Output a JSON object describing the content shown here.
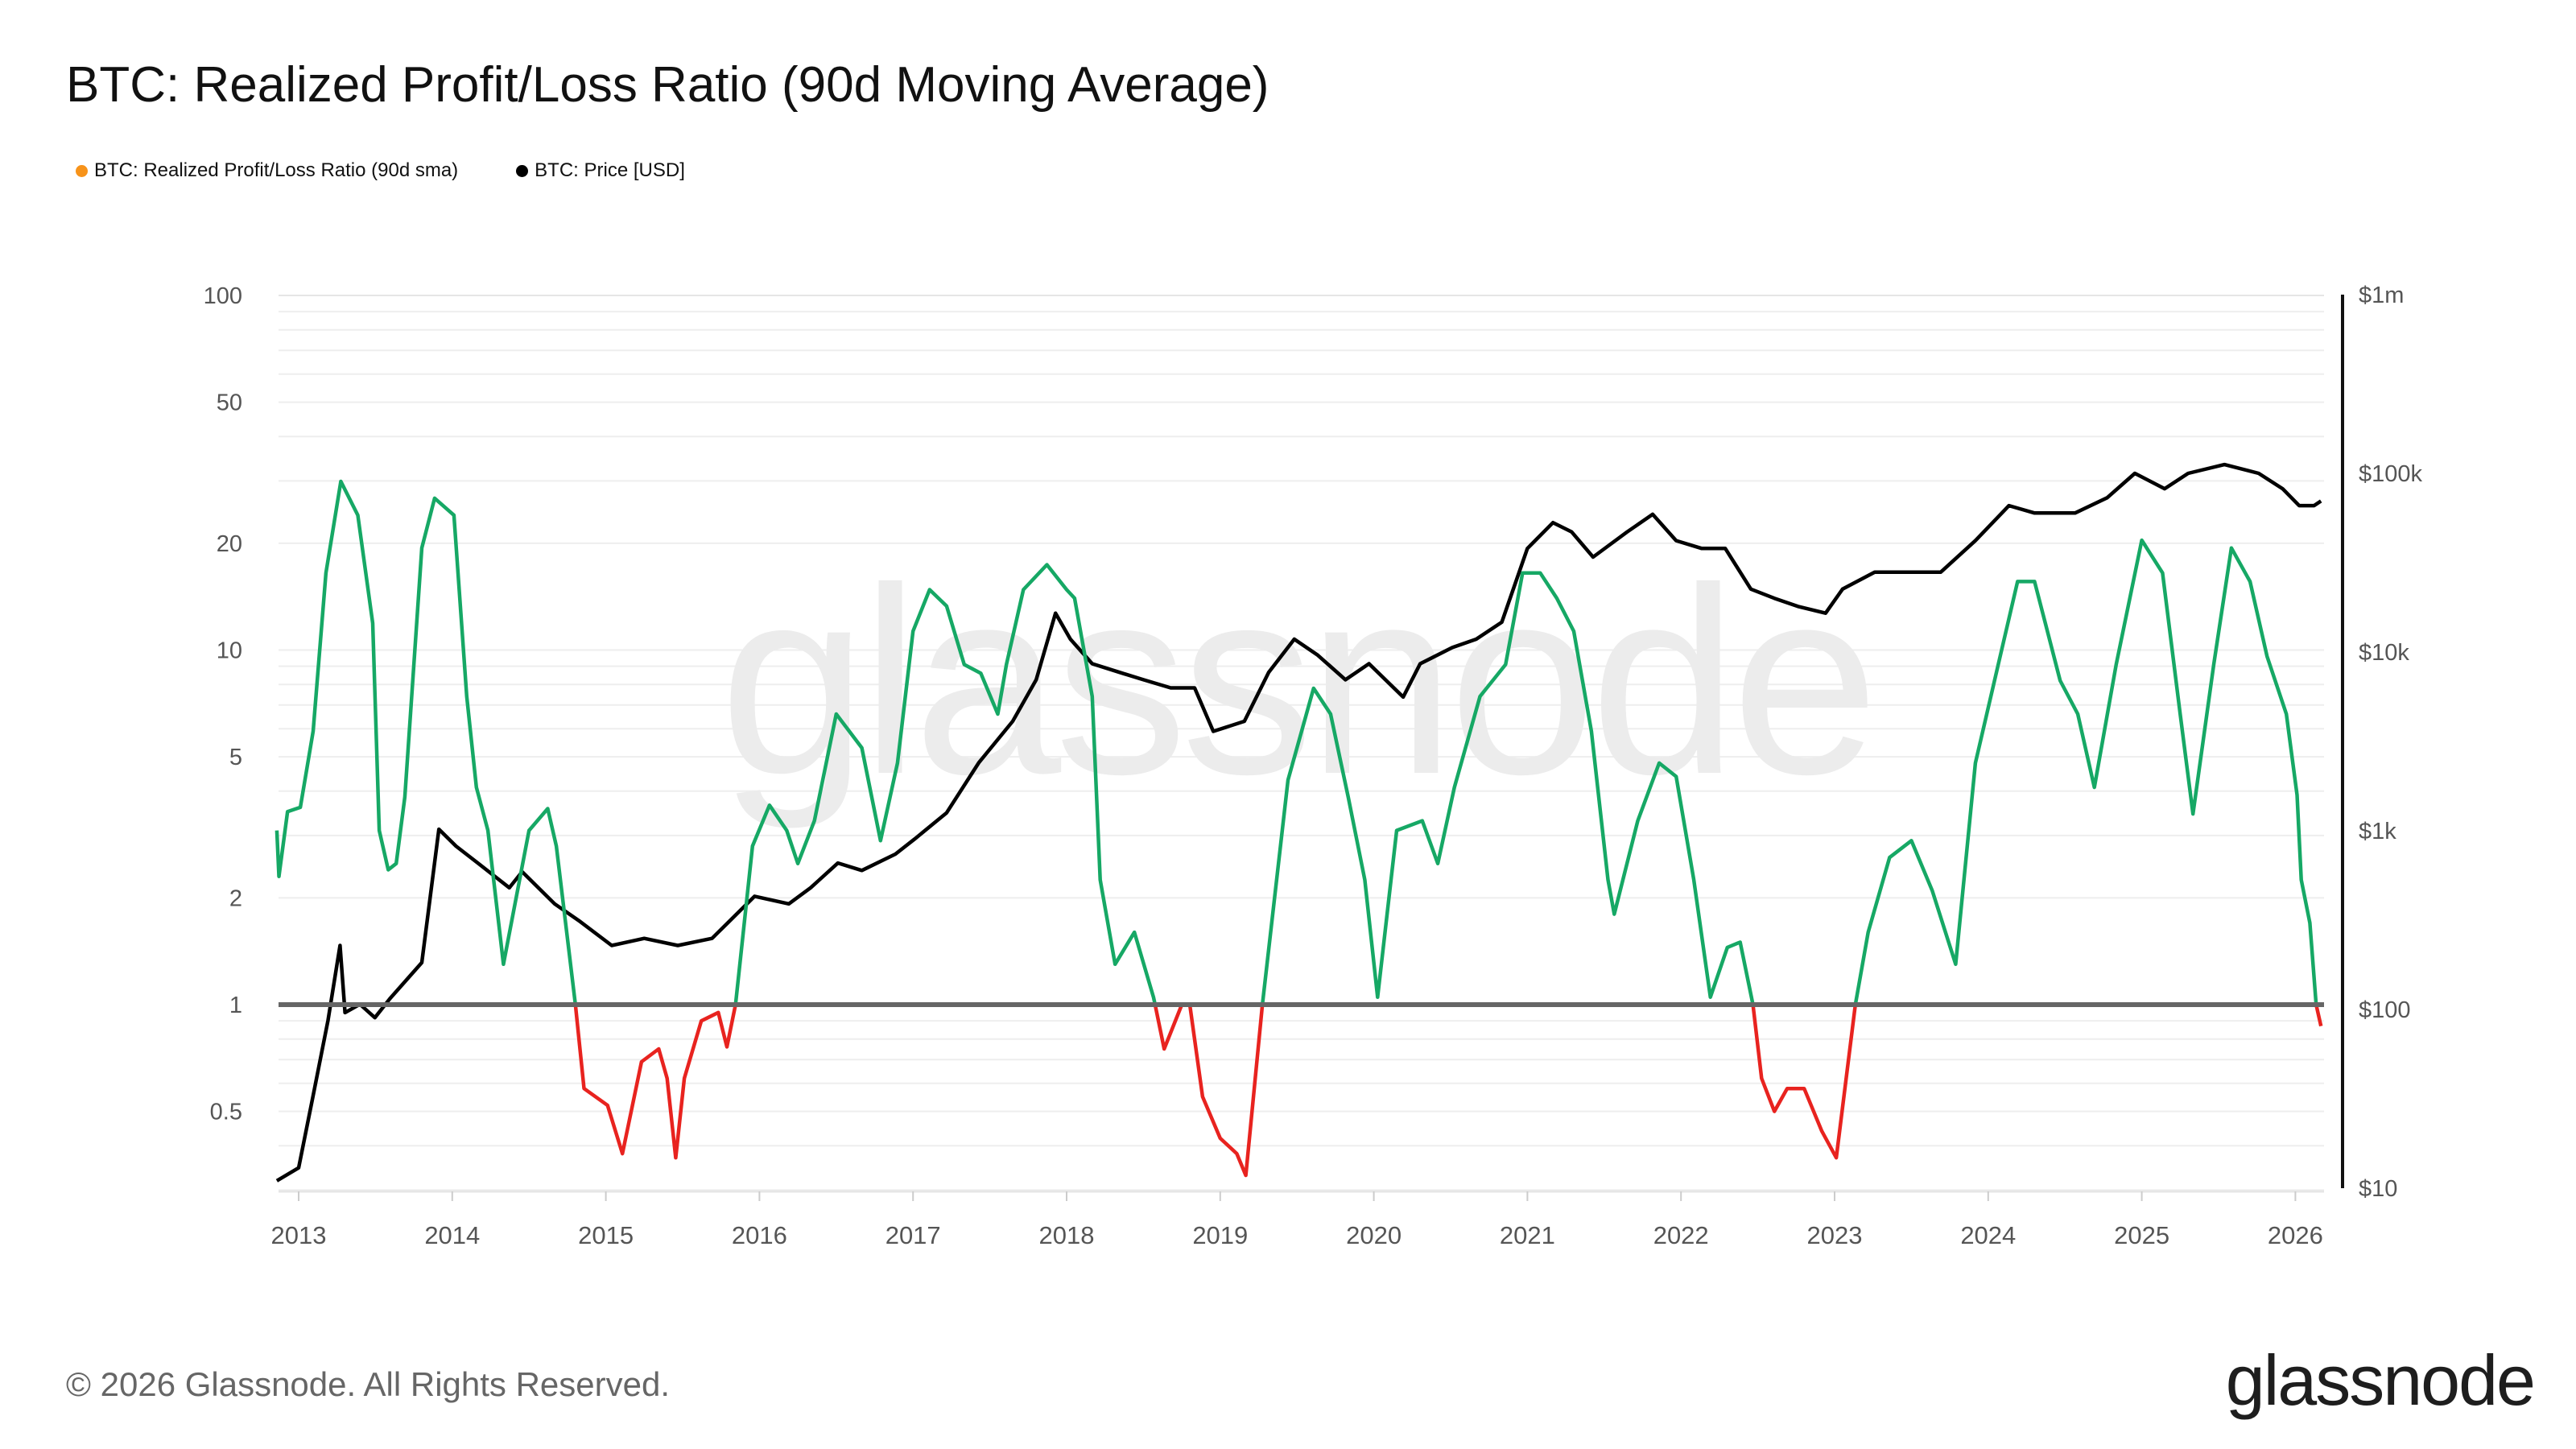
{
  "title": "BTC: Realized Profit/Loss Ratio (90d Moving Average)",
  "legend": [
    {
      "label": "BTC: Realized Profit/Loss Ratio (90d sma)",
      "color": "#f7931a"
    },
    {
      "label": "BTC: Price [USD]",
      "color": "#000000"
    }
  ],
  "footer": "© 2026 Glassnode. All Rights Reserved.",
  "logo": "glassnode",
  "watermark": "glassnode",
  "chart_data": {
    "type": "line",
    "x_ticks": [
      "2013",
      "2014",
      "2015",
      "2016",
      "2017",
      "2018",
      "2019",
      "2020",
      "2021",
      "2022",
      "2023",
      "2024",
      "2025",
      "2026"
    ],
    "y_left": {
      "scale": "log",
      "range": [
        0.3,
        100
      ],
      "ticks": [
        100,
        50,
        20,
        10,
        5,
        2,
        1,
        0.5
      ],
      "tick_labels": [
        "100",
        "50",
        "20",
        "10",
        "5",
        "2",
        "1",
        "0.5"
      ]
    },
    "y_right": {
      "scale": "log",
      "range": [
        10,
        1000000
      ],
      "ticks": [
        1000000,
        100000,
        10000,
        1000,
        100,
        10
      ],
      "tick_labels": [
        "$1m",
        "$100k",
        "$10k",
        "$1k",
        "$100",
        "$10"
      ]
    },
    "reference_line": {
      "value": 1,
      "color": "#666666"
    },
    "grid": true,
    "colors": {
      "above_1": "#16a865",
      "below_1": "#e8231f",
      "price": "#000000"
    },
    "series": [
      {
        "name": "BTC: Realized Profit/Loss Ratio (90d sma)",
        "axis": "left",
        "points": [
          [
            "2012-11-10",
            3.1
          ],
          [
            "2012-11-15",
            2.3
          ],
          [
            "2012-12-05",
            3.5
          ],
          [
            "2013-01-05",
            3.6
          ],
          [
            "2013-02-05",
            5.9
          ],
          [
            "2013-03-05",
            16.5
          ],
          [
            "2013-04-10",
            29.9
          ],
          [
            "2013-05-20",
            24
          ],
          [
            "2013-06-25",
            11.9
          ],
          [
            "2013-07-10",
            3.1
          ],
          [
            "2013-08-01",
            2.4
          ],
          [
            "2013-08-20",
            2.5
          ],
          [
            "2013-09-10",
            3.85
          ],
          [
            "2013-10-20",
            19.4
          ],
          [
            "2013-11-20",
            26.8
          ],
          [
            "2014-01-05",
            24
          ],
          [
            "2014-02-05",
            7.4
          ],
          [
            "2014-02-28",
            4.1
          ],
          [
            "2014-03-25",
            3.1
          ],
          [
            "2014-05-01",
            1.3
          ],
          [
            "2014-07-01",
            3.1
          ],
          [
            "2014-08-15",
            3.57
          ],
          [
            "2014-09-05",
            2.8
          ],
          [
            "2014-10-20",
            1.0
          ],
          [
            "2014-11-10",
            0.58
          ],
          [
            "2015-01-05",
            0.52
          ],
          [
            "2015-02-10",
            0.38
          ],
          [
            "2015-03-25",
            0.69
          ],
          [
            "2015-05-05",
            0.75
          ],
          [
            "2015-05-25",
            0.62
          ],
          [
            "2015-06-15",
            0.37
          ],
          [
            "2015-07-05",
            0.62
          ],
          [
            "2015-08-15",
            0.9
          ],
          [
            "2015-09-25",
            0.95
          ],
          [
            "2015-10-15",
            0.76
          ],
          [
            "2015-11-05",
            1.0
          ],
          [
            "2015-12-15",
            2.8
          ],
          [
            "2016-01-25",
            3.65
          ],
          [
            "2016-03-05",
            3.1
          ],
          [
            "2016-04-01",
            2.5
          ],
          [
            "2016-05-10",
            3.3
          ],
          [
            "2016-07-01",
            6.6
          ],
          [
            "2016-09-01",
            5.3
          ],
          [
            "2016-10-15",
            2.9
          ],
          [
            "2016-11-25",
            4.8
          ],
          [
            "2017-01-01",
            11.3
          ],
          [
            "2017-02-10",
            14.8
          ],
          [
            "2017-03-20",
            13.3
          ],
          [
            "2017-05-01",
            9.1
          ],
          [
            "2017-06-10",
            8.6
          ],
          [
            "2017-07-20",
            6.6
          ],
          [
            "2017-08-10",
            9.1
          ],
          [
            "2017-09-20",
            14.8
          ],
          [
            "2017-11-15",
            17.4
          ],
          [
            "2018-01-01",
            14.8
          ],
          [
            "2018-01-20",
            14.0
          ],
          [
            "2018-03-01",
            7.4
          ],
          [
            "2018-03-20",
            2.25
          ],
          [
            "2018-04-25",
            1.3
          ],
          [
            "2018-06-10",
            1.6
          ],
          [
            "2018-07-25",
            1.05
          ],
          [
            "2018-08-20",
            0.75
          ],
          [
            "2018-10-01",
            1.0
          ],
          [
            "2018-10-20",
            1.0
          ],
          [
            "2018-11-20",
            0.55
          ],
          [
            "2019-01-01",
            0.42
          ],
          [
            "2019-02-10",
            0.38
          ],
          [
            "2019-03-01",
            0.33
          ],
          [
            "2019-04-10",
            1.0
          ],
          [
            "2019-06-10",
            4.3
          ],
          [
            "2019-08-10",
            7.8
          ],
          [
            "2019-09-20",
            6.6
          ],
          [
            "2019-11-01",
            3.85
          ],
          [
            "2019-12-10",
            2.25
          ],
          [
            "2020-01-10",
            1.05
          ],
          [
            "2020-02-25",
            3.1
          ],
          [
            "2020-04-25",
            3.3
          ],
          [
            "2020-06-01",
            2.5
          ],
          [
            "2020-07-10",
            4.1
          ],
          [
            "2020-09-10",
            7.4
          ],
          [
            "2020-11-10",
            9.1
          ],
          [
            "2020-12-20",
            16.5
          ],
          [
            "2021-02-01",
            16.5
          ],
          [
            "2021-03-10",
            14.0
          ],
          [
            "2021-04-20",
            11.3
          ],
          [
            "2021-06-01",
            5.9
          ],
          [
            "2021-07-10",
            2.25
          ],
          [
            "2021-07-25",
            1.8
          ],
          [
            "2021-09-20",
            3.3
          ],
          [
            "2021-11-10",
            4.8
          ],
          [
            "2021-12-20",
            4.4
          ],
          [
            "2022-02-01",
            2.25
          ],
          [
            "2022-03-10",
            1.05
          ],
          [
            "2022-04-20",
            1.45
          ],
          [
            "2022-05-20",
            1.5
          ],
          [
            "2022-06-20",
            1.0
          ],
          [
            "2022-07-10",
            0.62
          ],
          [
            "2022-08-10",
            0.5
          ],
          [
            "2022-09-10",
            0.58
          ],
          [
            "2022-10-20",
            0.58
          ],
          [
            "2022-12-01",
            0.44
          ],
          [
            "2023-01-05",
            0.37
          ],
          [
            "2023-02-20",
            1.0
          ],
          [
            "2023-03-20",
            1.6
          ],
          [
            "2023-05-10",
            2.6
          ],
          [
            "2023-07-01",
            2.9
          ],
          [
            "2023-08-20",
            2.1
          ],
          [
            "2023-10-15",
            1.3
          ],
          [
            "2023-12-01",
            4.8
          ],
          [
            "2024-01-25",
            9.1
          ],
          [
            "2024-03-10",
            15.6
          ],
          [
            "2024-04-20",
            15.6
          ],
          [
            "2024-06-20",
            8.2
          ],
          [
            "2024-08-01",
            6.6
          ],
          [
            "2024-09-10",
            4.1
          ],
          [
            "2024-11-01",
            9.1
          ],
          [
            "2025-01-01",
            20.4
          ],
          [
            "2025-02-20",
            16.5
          ],
          [
            "2025-04-01",
            6.6
          ],
          [
            "2025-05-01",
            3.45
          ],
          [
            "2025-06-20",
            9.1
          ],
          [
            "2025-08-01",
            19.4
          ],
          [
            "2025-09-15",
            15.6
          ],
          [
            "2025-10-25",
            9.6
          ],
          [
            "2025-12-10",
            6.6
          ],
          [
            "2026-01-05",
            3.9
          ],
          [
            "2026-01-15",
            2.25
          ],
          [
            "2026-02-05",
            1.7
          ],
          [
            "2026-02-20",
            1.0
          ],
          [
            "2026-03-01",
            0.87
          ]
        ]
      },
      {
        "name": "BTC: Price [USD]",
        "axis": "right",
        "points": [
          [
            "2012-11-10",
            11
          ],
          [
            "2013-01-01",
            13
          ],
          [
            "2013-02-05",
            33
          ],
          [
            "2013-03-10",
            87
          ],
          [
            "2013-04-08",
            228
          ],
          [
            "2013-04-20",
            96
          ],
          [
            "2013-05-25",
            107
          ],
          [
            "2013-06-30",
            90
          ],
          [
            "2013-08-05",
            115
          ],
          [
            "2013-10-20",
            183
          ],
          [
            "2013-11-30",
            1020
          ],
          [
            "2014-01-10",
            820
          ],
          [
            "2014-03-01",
            660
          ],
          [
            "2014-05-15",
            480
          ],
          [
            "2014-06-15",
            590
          ],
          [
            "2014-09-01",
            390
          ],
          [
            "2014-11-01",
            310
          ],
          [
            "2015-01-15",
            228
          ],
          [
            "2015-04-01",
            250
          ],
          [
            "2015-06-20",
            228
          ],
          [
            "2015-09-10",
            250
          ],
          [
            "2015-10-20",
            310
          ],
          [
            "2015-12-20",
            430
          ],
          [
            "2016-03-10",
            390
          ],
          [
            "2016-05-01",
            480
          ],
          [
            "2016-07-05",
            660
          ],
          [
            "2016-09-01",
            600
          ],
          [
            "2016-11-20",
            740
          ],
          [
            "2017-01-05",
            900
          ],
          [
            "2017-03-20",
            1260
          ],
          [
            "2017-06-05",
            2400
          ],
          [
            "2017-08-25",
            4100
          ],
          [
            "2017-10-20",
            7000
          ],
          [
            "2017-12-05",
            16500
          ],
          [
            "2018-01-10",
            11800
          ],
          [
            "2018-03-01",
            8600
          ],
          [
            "2018-05-05",
            7700
          ],
          [
            "2018-07-01",
            7000
          ],
          [
            "2018-09-05",
            6300
          ],
          [
            "2018-11-01",
            6300
          ],
          [
            "2018-12-15",
            3600
          ],
          [
            "2019-02-28",
            4100
          ],
          [
            "2019-04-25",
            7700
          ],
          [
            "2019-06-25",
            11800
          ],
          [
            "2019-08-20",
            9600
          ],
          [
            "2019-10-25",
            7000
          ],
          [
            "2019-12-20",
            8600
          ],
          [
            "2020-03-10",
            5600
          ],
          [
            "2020-04-20",
            8600
          ],
          [
            "2020-07-05",
            10600
          ],
          [
            "2020-09-01",
            11800
          ],
          [
            "2020-11-01",
            14700
          ],
          [
            "2021-01-01",
            38000
          ],
          [
            "2021-03-01",
            53000
          ],
          [
            "2021-04-15",
            47000
          ],
          [
            "2021-06-05",
            34000
          ],
          [
            "2021-08-25",
            47000
          ],
          [
            "2021-10-25",
            59000
          ],
          [
            "2021-12-20",
            42000
          ],
          [
            "2022-02-20",
            38000
          ],
          [
            "2022-04-15",
            38000
          ],
          [
            "2022-06-15",
            22500
          ],
          [
            "2022-08-10",
            20000
          ],
          [
            "2022-10-05",
            18000
          ],
          [
            "2022-12-10",
            16500
          ],
          [
            "2023-01-20",
            22500
          ],
          [
            "2023-04-05",
            28000
          ],
          [
            "2023-06-15",
            28000
          ],
          [
            "2023-09-10",
            28000
          ],
          [
            "2023-12-01",
            42000
          ],
          [
            "2024-02-20",
            66000
          ],
          [
            "2024-04-20",
            60000
          ],
          [
            "2024-07-25",
            60000
          ],
          [
            "2024-10-10",
            73000
          ],
          [
            "2024-12-15",
            100000
          ],
          [
            "2025-02-25",
            82000
          ],
          [
            "2025-04-20",
            100000
          ],
          [
            "2025-07-15",
            112000
          ],
          [
            "2025-10-05",
            100000
          ],
          [
            "2025-12-01",
            82000
          ],
          [
            "2026-01-10",
            66000
          ],
          [
            "2026-02-15",
            66000
          ],
          [
            "2026-03-01",
            70000
          ]
        ]
      }
    ]
  }
}
